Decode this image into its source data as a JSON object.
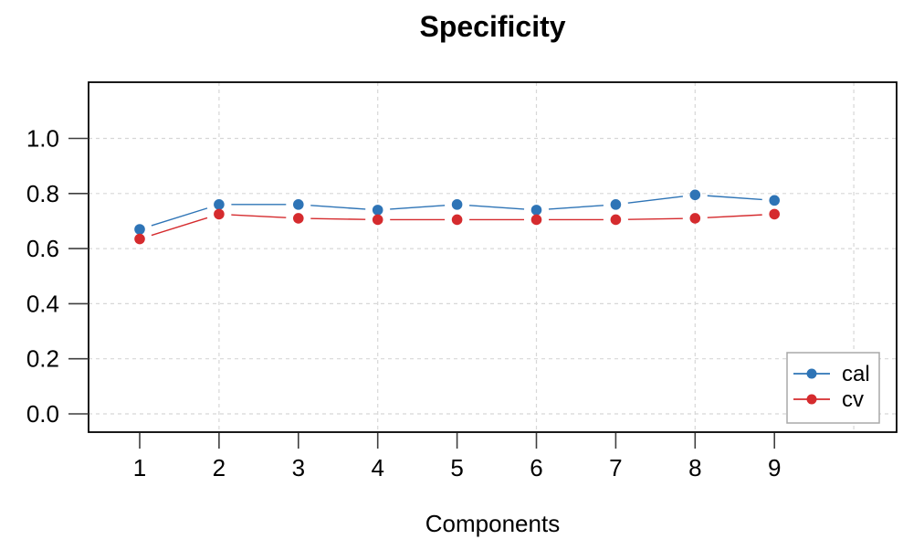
{
  "window": {
    "background": "#ffffff"
  },
  "chart_data": {
    "type": "line",
    "title": "Specificity",
    "xlabel": "Components",
    "ylabel": "",
    "x": [
      1,
      2,
      3,
      4,
      5,
      6,
      7,
      8,
      9
    ],
    "x_tick_labels": [
      "1",
      "2",
      "3",
      "4",
      "5",
      "6",
      "7",
      "8",
      "9"
    ],
    "y_tick_labels": [
      "0.0",
      "0.2",
      "0.4",
      "0.6",
      "0.8",
      "1.0"
    ],
    "y_tick_values": [
      0.0,
      0.2,
      0.4,
      0.6,
      0.8,
      1.0
    ],
    "xlim": [
      0.35,
      10.55
    ],
    "ylim": [
      -0.07,
      1.2
    ],
    "grid": true,
    "grid_vertical_at": [
      2,
      4,
      6,
      8,
      10
    ],
    "series": [
      {
        "name": "cal",
        "color": "#2e74b6",
        "marker": "circle",
        "values": [
          0.67,
          0.76,
          0.76,
          0.74,
          0.76,
          0.74,
          0.76,
          0.795,
          0.775
        ]
      },
      {
        "name": "cv",
        "color": "#d52b2e",
        "marker": "circle",
        "values": [
          0.635,
          0.725,
          0.71,
          0.705,
          0.705,
          0.705,
          0.705,
          0.71,
          0.725
        ]
      }
    ],
    "legend": {
      "position": "bottom-right",
      "entries": [
        "cal",
        "cv"
      ],
      "border_color": "#a8a8a8",
      "background": "#ffffff"
    },
    "style": {
      "grid_color": "#d7d7d7",
      "axis_box_color": "#000000",
      "tick_color": "#3f3f3f",
      "line_type": "points-with-gapped-segments"
    }
  }
}
